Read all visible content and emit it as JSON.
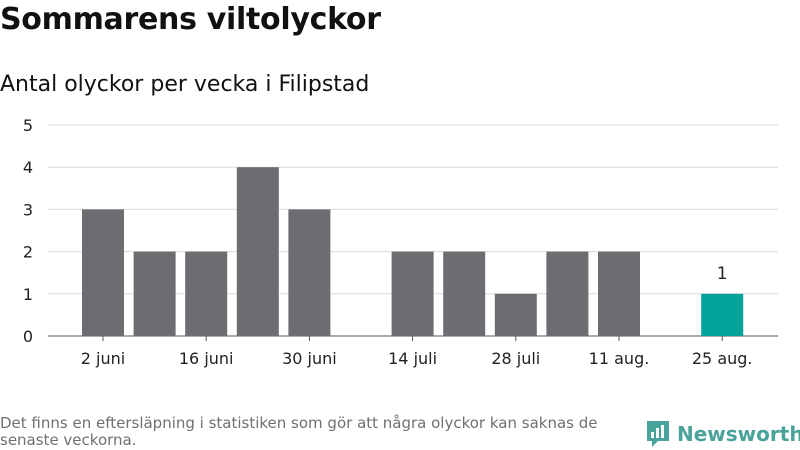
{
  "header": {
    "title": "Sommarens viltolyckor",
    "subtitle": "Antal olyckor per vecka i Filipstad"
  },
  "footer": {
    "note": "Det finns en eftersläpning i statistiken som gör att några olyckor kan saknas de senaste veckorna.",
    "brand": "Newsworthy"
  },
  "colors": {
    "bar": "#6d6c71",
    "highlight": "#00a39a",
    "grid": "#d9d9d9",
    "brand": "#4aa39a"
  },
  "chart_data": {
    "type": "bar",
    "title": "Sommarens viltolyckor",
    "subtitle": "Antal olyckor per vecka i Filipstad",
    "xlabel": "",
    "ylabel": "",
    "ylim": [
      0,
      5
    ],
    "yticks": [
      "0",
      "1",
      "2",
      "3",
      "4",
      "5"
    ],
    "grid": true,
    "x_tick_labels": [
      "2 juni",
      "16 juni",
      "30 juni",
      "14 juli",
      "28 juli",
      "11 aug.",
      "25 aug."
    ],
    "values": [
      3,
      2,
      2,
      4,
      3,
      0,
      2,
      2,
      1,
      2,
      2,
      0,
      1
    ],
    "highlight_index": 12,
    "data_labels": [
      {
        "index": 12,
        "text": "1"
      }
    ]
  }
}
